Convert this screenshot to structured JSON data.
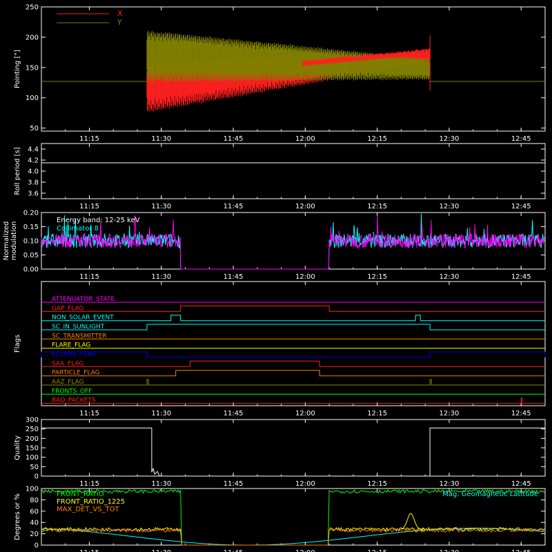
{
  "colors": {
    "bg": "#000000",
    "axis": "#ffffff",
    "red": "#ff2020",
    "olive": "#808000",
    "white": "#ffffff",
    "magenta": "#ff00ff",
    "cyan": "#00ffff",
    "orange": "#ff8000",
    "yellow": "#ffff00",
    "blue": "#0000ff",
    "green": "#00ff00",
    "gray_olive": "#8c8c00"
  },
  "time_axis": {
    "start": "11:05",
    "end": "12:50",
    "ticks": [
      "11:15",
      "11:30",
      "11:45",
      "12:00",
      "12:15",
      "12:30",
      "12:45"
    ]
  },
  "chart_data": [
    {
      "type": "line",
      "name": "pointing",
      "ylabel": "Pointing [\"]",
      "ylim": [
        45,
        250
      ],
      "yticks": [
        50,
        100,
        150,
        200,
        250
      ],
      "legend": [
        "X",
        "Y"
      ],
      "legend_position": "top-left",
      "series": [
        {
          "name": "X",
          "color": "red",
          "baseline": 127,
          "active": [
            "11:27",
            "12:26"
          ],
          "center_start": 125,
          "center_end": 168,
          "amp_start": 62,
          "amp_end": 12
        },
        {
          "name": "Y",
          "color": "olive",
          "baseline": 127,
          "active": [
            "11:27",
            "12:26"
          ],
          "center_start": 175,
          "center_end": 150,
          "amp_start": 62,
          "amp_end": 25
        }
      ]
    },
    {
      "type": "line",
      "name": "roll-period",
      "ylabel": "Roll period [s]",
      "ylim": [
        3.5,
        4.5
      ],
      "yticks": [
        3.6,
        3.8,
        4.0,
        4.2,
        4.4
      ],
      "series": [
        {
          "name": "roll",
          "color": "white",
          "value": 4.15
        }
      ]
    },
    {
      "type": "line",
      "name": "modulation",
      "ylabel": "Normalized modulation",
      "ylim": [
        0,
        0.2
      ],
      "yticks": [
        0.0,
        0.05,
        0.1,
        0.15,
        0.2
      ],
      "annotation_1": "Energy band: 12-25 keV",
      "annotation_2": "Collimator 8",
      "gap": [
        "11:34",
        "12:05"
      ],
      "series": [
        {
          "name": "Collimator 8",
          "color": "cyan",
          "mean": 0.1
        },
        {
          "name": "modulation",
          "color": "magenta",
          "mean": 0.1
        }
      ]
    },
    {
      "type": "line",
      "name": "flags",
      "ylabel": "Flags",
      "flags": [
        {
          "label": "ATTENUATOR_STATE",
          "color": "magenta",
          "highs": []
        },
        {
          "label": "GAP_FLAG",
          "color": "red",
          "highs": [
            [
              "11:34",
              "12:05"
            ]
          ]
        },
        {
          "label": "NON_SOLAR_EVENT",
          "color": "cyan",
          "highs": [
            [
              "11:32",
              "11:34"
            ],
            [
              "12:23",
              "12:24"
            ]
          ]
        },
        {
          "label": "SC_IN_SUNLIGHT",
          "color": "cyan",
          "highs": [
            [
              "11:27",
              "12:26"
            ]
          ]
        },
        {
          "label": "SC_TRANSMITTER",
          "color": "orange",
          "highs": []
        },
        {
          "label": "FLARE_FLAG",
          "color": "yellow",
          "highs": []
        },
        {
          "label": "ECLIPSE_FLAG",
          "color": "blue",
          "highs": [
            [
              "11:05",
              "11:27"
            ],
            [
              "12:26",
              "12:50"
            ]
          ]
        },
        {
          "label": "SAA_FLAG",
          "color": "red",
          "highs": [
            [
              "11:36",
              "12:03"
            ]
          ]
        },
        {
          "label": "PARTICLE_FLAG",
          "color": "orange",
          "highs": [
            [
              "11:33",
              "12:03"
            ]
          ]
        },
        {
          "label": "AAZ_FLAG",
          "color": "gray_olive",
          "highs": [
            [
              "11:27",
              "11:27.3"
            ],
            [
              "12:26",
              "12:26.3"
            ]
          ]
        },
        {
          "label": "FRONTS_OFF",
          "color": "green",
          "highs": []
        },
        {
          "label": "BAD_PACKETS",
          "color": "red",
          "highs": [
            [
              "12:45",
              "12:45.2"
            ]
          ]
        }
      ]
    },
    {
      "type": "line",
      "name": "quality",
      "ylabel": "Quality",
      "ylim": [
        0,
        300
      ],
      "yticks": [
        0,
        50,
        100,
        150,
        200,
        250,
        300
      ],
      "series": [
        {
          "name": "quality",
          "color": "white",
          "value_high": 255,
          "low_range": [
            "11:28",
            "12:26"
          ]
        }
      ]
    },
    {
      "type": "line",
      "name": "degrees",
      "ylabel": "Degrees or %",
      "ylim": [
        0,
        100
      ],
      "yticks": [
        0,
        20,
        40,
        60,
        80,
        100
      ],
      "legend": [
        "FRONT_RATIO",
        "FRONT_RATIO_1225",
        "MAX_DET_VS_TOT"
      ],
      "annotation_right": "Mag. Geomagnetic Latitude",
      "series": [
        {
          "name": "FRONT_RATIO",
          "color": "green",
          "level": 95
        },
        {
          "name": "FRONT_RATIO_1225",
          "color": "yellow",
          "level": 28
        },
        {
          "name": "MAX_DET_VS_TOT",
          "color": "orange",
          "level": 26
        },
        {
          "name": "Mag. Geomagnetic Latitude",
          "color": "cyan"
        }
      ]
    }
  ]
}
